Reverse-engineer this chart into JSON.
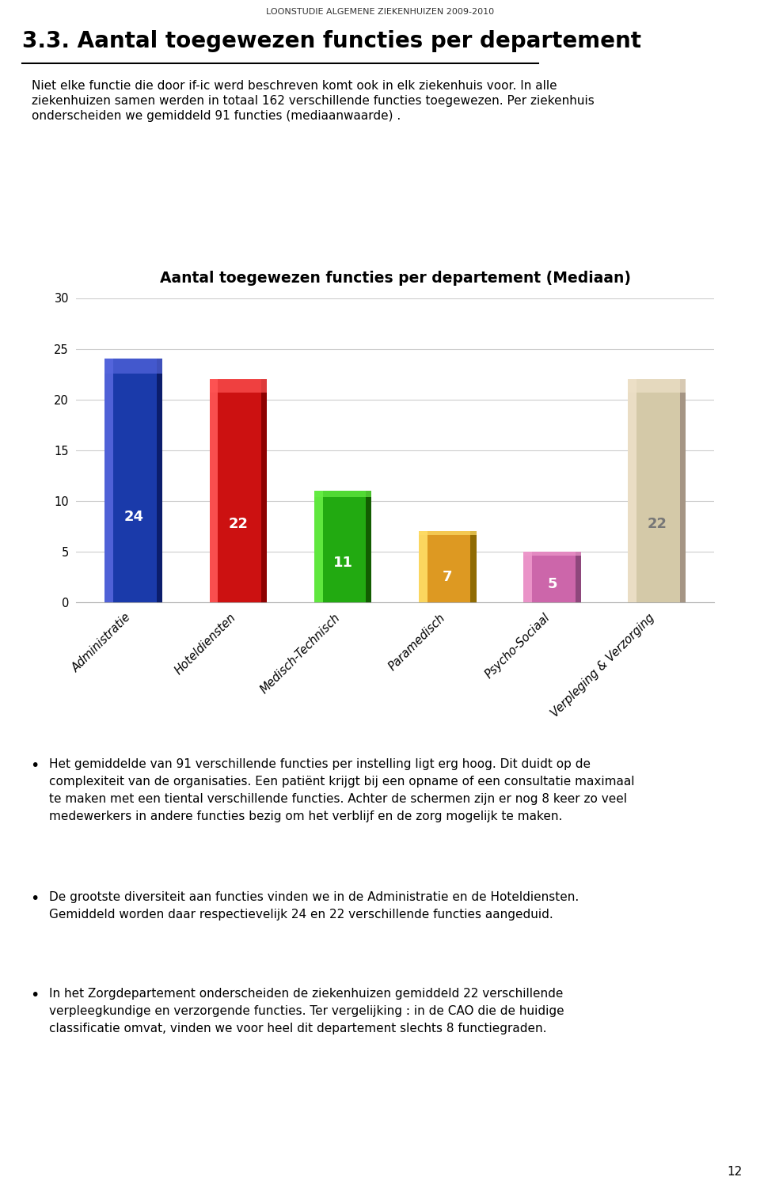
{
  "header": "LOONSTUDIE ALGEMENE ZIEKENHUIZEN 2009-2010",
  "section_title": "3.3. Aantal toegewezen functies per departement",
  "intro_line1": "Niet elke functie die door if-ic werd beschreven komt ook in elk ziekenhuis voor. In alle",
  "intro_line2": "ziekenhuizen samen werden in totaal 162 verschillende functies toegewezen. Per ziekenhuis",
  "intro_line3": "onderscheiden we gemiddeld 91 functies (mediaanwaarde) .",
  "chart_title": "Aantal toegewezen functies per departement (Mediaan)",
  "categories": [
    "Administratie",
    "Hoteldiensten",
    "Medisch-Technisch",
    "Paramedisch",
    "Psycho-Sociaal",
    "Verpleging & Verzorging"
  ],
  "values": [
    24,
    22,
    11,
    7,
    5,
    22
  ],
  "bar_colors": [
    "#1a3aaa",
    "#cc1111",
    "#22aa11",
    "#dd9922",
    "#cc66aa",
    "#d4c9a8"
  ],
  "bar_colors_light": [
    "#5566dd",
    "#ff5555",
    "#66ee44",
    "#ffdd66",
    "#ee99cc",
    "#ede0c8"
  ],
  "bar_colors_dark": [
    "#0a1a66",
    "#880000",
    "#115500",
    "#886600",
    "#884477",
    "#a09080"
  ],
  "label_colors": [
    "white",
    "white",
    "white",
    "white",
    "white",
    "#777777"
  ],
  "ylim_max": 30,
  "yticks": [
    0,
    5,
    10,
    15,
    20,
    25,
    30
  ],
  "bullet1_line1": "Het gemiddelde van 91 verschillende functies per instelling ligt erg hoog. Dit duidt op de",
  "bullet1_line2": "complexiteit van de organisaties. Een patiënt krijgt bij een opname of een consultatie maximaal",
  "bullet1_line3": "te maken met een tiental verschillende functies. Achter de schermen zijn er nog 8 keer zo veel",
  "bullet1_line4": "medewerkers in andere functies bezig om het verblijf en de zorg mogelijk te maken.",
  "bullet2_line1": "De grootste diversiteit aan functies vinden we in de Administratie en de Hoteldiensten.",
  "bullet2_line2": "Gemiddeld worden daar respectievelijk 24 en 22 verschillende functies aangeduid.",
  "bullet3_line1": "In het Zorgdepartement onderscheiden de ziekenhuizen gemiddeld 22 verschillende",
  "bullet3_line2": "verpleegkundige en verzorgende functies. Ter vergelijking : in de CAO die de huidige",
  "bullet3_line3": "classificatie omvat, vinden we voor heel dit departement slechts 8 functiegraden.",
  "page_number": "12",
  "fig_width": 9.6,
  "fig_height": 15.06
}
